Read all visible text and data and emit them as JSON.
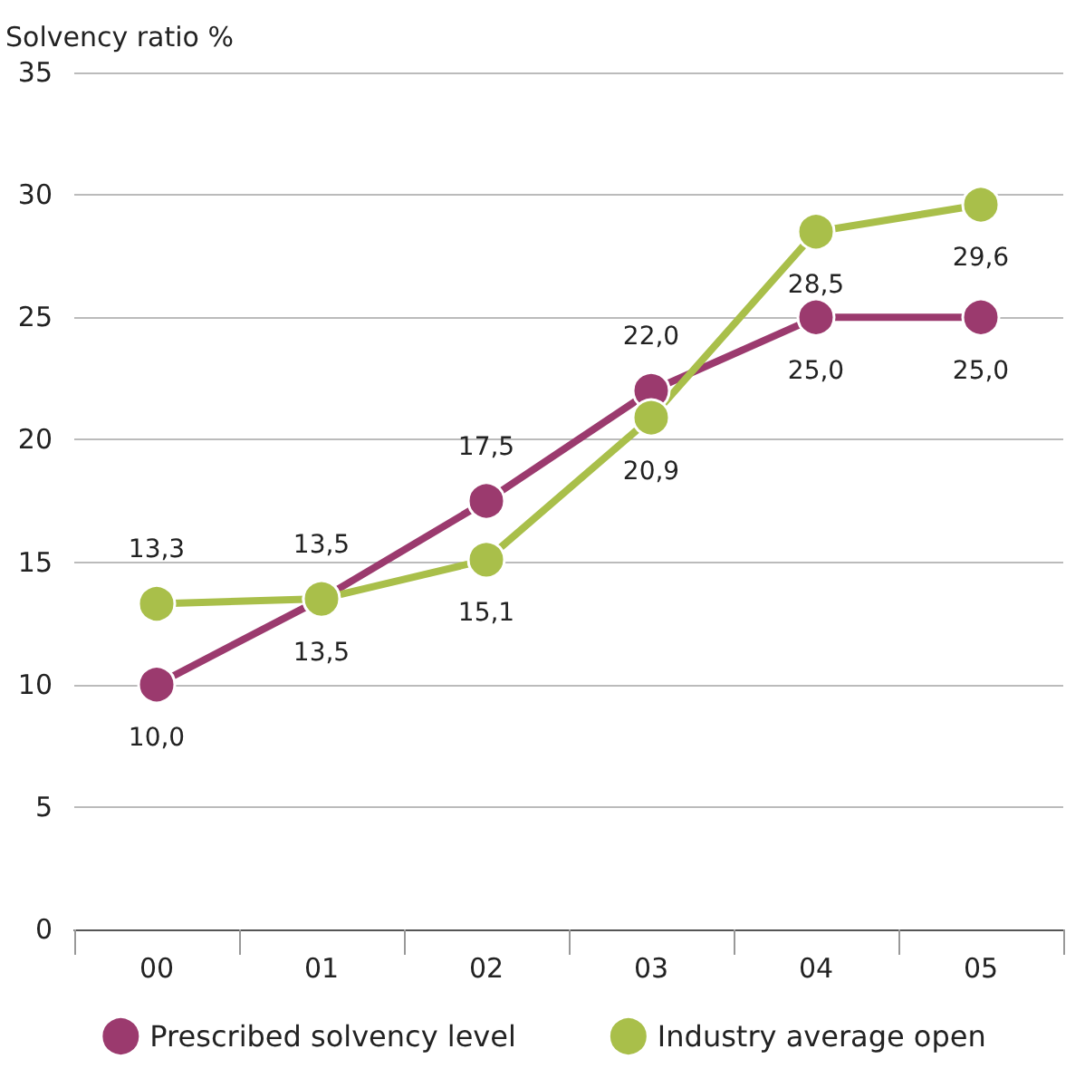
{
  "chart_data": {
    "type": "line",
    "ylabel": "Solvency ratio %",
    "categories": [
      "00",
      "01",
      "02",
      "03",
      "04",
      "05"
    ],
    "series": [
      {
        "name": "Prescribed solvency level",
        "color": "#9b3a6e",
        "values": [
          10.0,
          13.5,
          17.5,
          22.0,
          25.0,
          25.0
        ],
        "value_labels": [
          "10,0",
          "13,5",
          "17,5",
          "22,0",
          "25,0",
          "25,0"
        ]
      },
      {
        "name": "Industry average open",
        "color": "#a9bf4a",
        "values": [
          13.3,
          13.5,
          15.1,
          20.9,
          28.5,
          29.6
        ],
        "value_labels": [
          "13,3",
          "13,5",
          "15,1",
          "20,9",
          "28,5",
          "29,6"
        ]
      }
    ],
    "ylim": [
      0,
      35
    ],
    "yticks": [
      0,
      5,
      10,
      15,
      20,
      25,
      30,
      35
    ],
    "grid": "y",
    "legend": "bottom",
    "marker": "circle",
    "line_style": "solid"
  }
}
